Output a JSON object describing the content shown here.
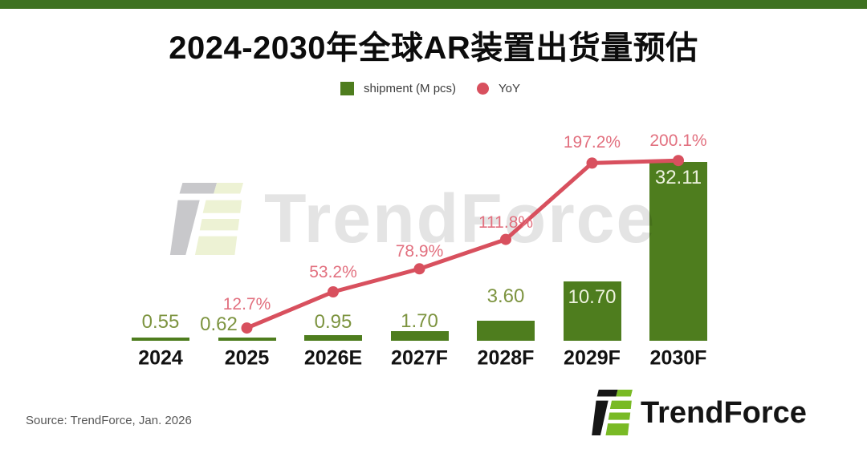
{
  "page": {
    "title": "2024-2030年全球AR装置出货量预估"
  },
  "legend": {
    "shipment_label": "shipment (M pcs)",
    "yoy_label": "YoY"
  },
  "chart_data": {
    "type": "combo",
    "title": "2024-2030年全球AR装置出货量预估",
    "categories": [
      "2024",
      "2025",
      "2026E",
      "2027F",
      "2028F",
      "2029F",
      "2030F"
    ],
    "series": [
      {
        "name": "shipment (M pcs)",
        "type": "bar",
        "unit": "M pcs",
        "values": [
          0.55,
          0.62,
          0.95,
          1.7,
          3.6,
          10.7,
          32.11
        ],
        "labels": [
          "0.55",
          "0.62",
          "0.95",
          "1.70",
          "3.60",
          "10.70",
          "32.11"
        ]
      },
      {
        "name": "YoY",
        "type": "line",
        "unit": "%",
        "values": [
          null,
          12.7,
          53.2,
          78.9,
          111.8,
          197.2,
          200.1
        ],
        "labels": [
          null,
          "12.7%",
          "53.2%",
          "78.9%",
          "111.8%",
          "197.2%",
          "200.1%"
        ]
      }
    ],
    "bar_axis_range": [
      0,
      35
    ],
    "line_axis_range": [
      0,
      220
    ],
    "grid": false,
    "legend_position": "top"
  },
  "watermark": {
    "text": "TrendForce"
  },
  "footer": {
    "source": "Source: TrendForce, Jan. 2026",
    "logo_text": "TrendForce"
  },
  "colors": {
    "theme_green": "#3e7221",
    "bar_green": "#4e7d1e",
    "line_red": "#d8505e",
    "yoy_label_pink": "#e2707f",
    "bar_label_olive": "#7d9440",
    "bar_label_light": "#edf2de",
    "logo_green": "#79ba25",
    "watermark_gray": "#e4e4e4"
  }
}
